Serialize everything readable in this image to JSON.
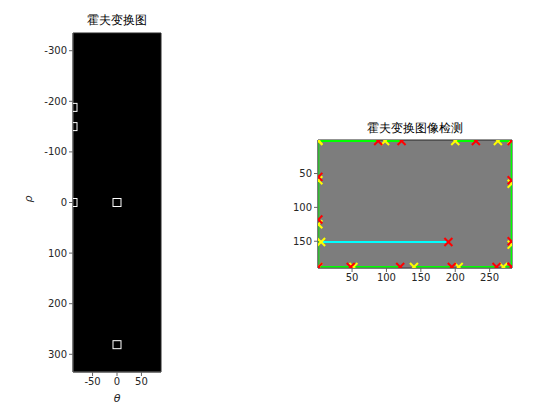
{
  "chart_data": [
    {
      "type": "scatter",
      "title": "霍夫变换图",
      "x_label": "θ",
      "y_label": "ρ",
      "x": [
        -90,
        -90,
        -90,
        0,
        0
      ],
      "y": [
        -188,
        -150,
        0,
        0,
        281
      ],
      "xlim": [
        -90,
        90
      ],
      "xticks": [
        -50,
        0,
        50
      ],
      "ylim": [
        -335,
        335
      ],
      "yticks": [
        -300,
        -200,
        -100,
        0,
        100,
        200,
        300
      ],
      "marker": "square",
      "color": "#ffffff"
    },
    {
      "type": "line",
      "title": "霍夫变换图像检测",
      "xlim": [
        0.5,
        282.5
      ],
      "xticks": [
        50,
        100,
        150,
        200,
        250
      ],
      "ylim": [
        0.5,
        189.5
      ],
      "yticks": [
        50,
        100,
        150
      ],
      "marker": "x",
      "segments": [
        {
          "x": [
            1,
            88
          ],
          "y": [
            2,
            2
          ],
          "color": "#00ff00"
        },
        {
          "x": [
            98,
            122
          ],
          "y": [
            2,
            2
          ],
          "color": "#00ff00"
        },
        {
          "x": [
            200,
            230
          ],
          "y": [
            2,
            2
          ],
          "color": "#00ff00"
        },
        {
          "x": [
            262,
            282
          ],
          "y": [
            2,
            2
          ],
          "color": "#00ff00"
        },
        {
          "x": [
            1,
            48
          ],
          "y": [
            188,
            188
          ],
          "color": "#00ff00"
        },
        {
          "x": [
            52,
            120
          ],
          "y": [
            188,
            188
          ],
          "color": "#00ff00"
        },
        {
          "x": [
            140,
            195
          ],
          "y": [
            188,
            188
          ],
          "color": "#00ff00"
        },
        {
          "x": [
            205,
            260
          ],
          "y": [
            188,
            188
          ],
          "color": "#00ff00"
        },
        {
          "x": [
            270,
            282
          ],
          "y": [
            188,
            188
          ],
          "color": "#00ff00"
        },
        {
          "x": [
            1,
            1
          ],
          "y": [
            1,
            55
          ],
          "color": "#00ff00"
        },
        {
          "x": [
            1,
            1
          ],
          "y": [
            60,
            118
          ],
          "color": "#00ff00"
        },
        {
          "x": [
            1,
            1
          ],
          "y": [
            125,
            188
          ],
          "color": "#00ff00"
        },
        {
          "x": [
            282,
            282
          ],
          "y": [
            1,
            60
          ],
          "color": "#00ff00"
        },
        {
          "x": [
            282,
            282
          ],
          "y": [
            65,
            150
          ],
          "color": "#00ff00"
        },
        {
          "x": [
            282,
            282
          ],
          "y": [
            155,
            188
          ],
          "color": "#00ff00"
        },
        {
          "x": [
            5,
            190
          ],
          "y": [
            151,
            151
          ],
          "color": "#00ffff"
        }
      ]
    }
  ]
}
